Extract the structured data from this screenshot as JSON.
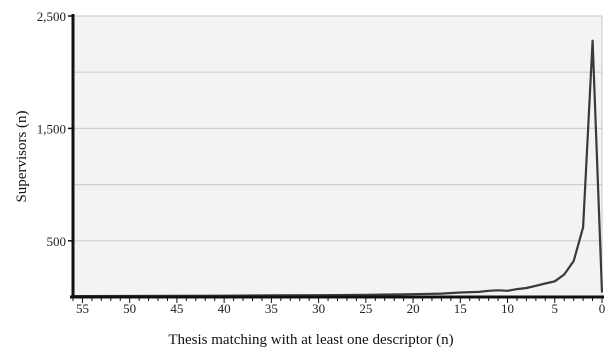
{
  "chart_data": {
    "type": "line",
    "xlabel": "Thesis matching with at least one descriptor (n)",
    "ylabel": "Supervisors (n)",
    "xlim": [
      56,
      0
    ],
    "x_reversed": true,
    "ylim": [
      0,
      2500
    ],
    "grid": true,
    "x_ticks": [
      55,
      50,
      45,
      40,
      35,
      30,
      25,
      20,
      15,
      10,
      5,
      0
    ],
    "y_ticks": [
      500,
      1500,
      2500
    ],
    "y_tick_labels": [
      "500",
      "1,500",
      "2,500"
    ],
    "y_gridlines": [
      500,
      1000,
      1500,
      2000,
      2500
    ],
    "series": [
      {
        "x": [
          56,
          55,
          50,
          45,
          40,
          35,
          30,
          25,
          20,
          17,
          15,
          13,
          12,
          11,
          10,
          9,
          8,
          7,
          6,
          5,
          4,
          3,
          2,
          1,
          0
        ],
        "values": [
          8,
          8,
          9,
          10,
          12,
          14,
          16,
          20,
          25,
          30,
          40,
          45,
          55,
          60,
          55,
          70,
          80,
          100,
          120,
          140,
          200,
          320,
          620,
          2280,
          40
        ]
      }
    ]
  }
}
